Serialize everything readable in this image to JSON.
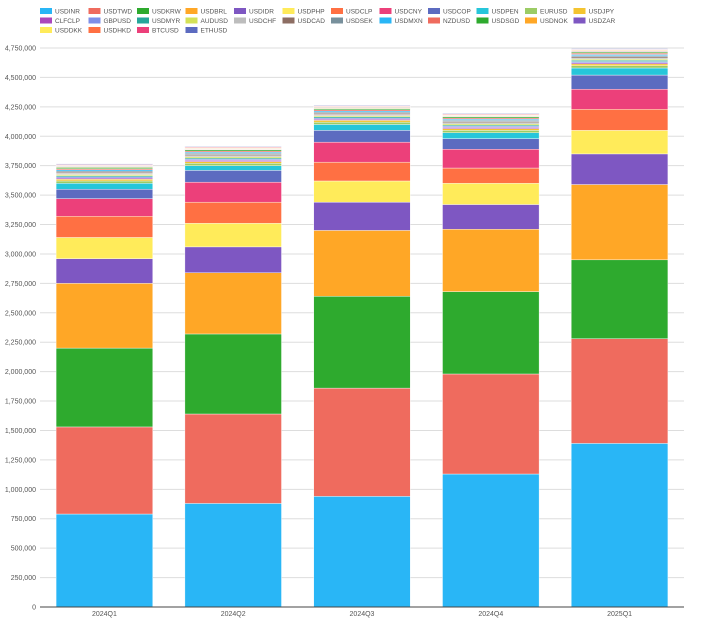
{
  "chart_data": {
    "type": "bar",
    "stacked": true,
    "title": "",
    "xlabel": "",
    "ylabel": "",
    "ylim": [
      0,
      4750000
    ],
    "y_ticks": [
      0,
      250000,
      500000,
      750000,
      1000000,
      1250000,
      1500000,
      1750000,
      2000000,
      2250000,
      2500000,
      2750000,
      3000000,
      3250000,
      3500000,
      3750000,
      4000000,
      4250000,
      4500000,
      4750000
    ],
    "grid": true,
    "legend_position": "top",
    "categories": [
      "2024Q1",
      "2024Q2",
      "2024Q3",
      "2024Q4",
      "2025Q1"
    ],
    "series": [
      {
        "name": "USDINR",
        "color": "#29b6f6",
        "values": [
          790000,
          880000,
          940000,
          1130000,
          1390000
        ]
      },
      {
        "name": "USDTWD",
        "color": "#ef6b5e",
        "values": [
          740000,
          760000,
          920000,
          850000,
          890000
        ]
      },
      {
        "name": "USDKRW",
        "color": "#2eaa2e",
        "values": [
          670000,
          680000,
          780000,
          700000,
          670000
        ]
      },
      {
        "name": "USDBRL",
        "color": "#ffa726",
        "values": [
          550000,
          520000,
          560000,
          530000,
          640000
        ]
      },
      {
        "name": "USDIDR",
        "color": "#7e57c2",
        "values": [
          210000,
          220000,
          240000,
          210000,
          260000
        ]
      },
      {
        "name": "USDPHP",
        "color": "#ffeb5a",
        "values": [
          180000,
          200000,
          180000,
          180000,
          200000
        ]
      },
      {
        "name": "USDCLP",
        "color": "#ff7043",
        "values": [
          180000,
          180000,
          160000,
          130000,
          180000
        ]
      },
      {
        "name": "USDCNY",
        "color": "#ec407a",
        "values": [
          150000,
          170000,
          170000,
          160000,
          170000
        ]
      },
      {
        "name": "USDCOP",
        "color": "#5c6bc0",
        "values": [
          80000,
          100000,
          100000,
          90000,
          120000
        ]
      },
      {
        "name": "USDPEN",
        "color": "#26c6da",
        "values": [
          50000,
          40000,
          50000,
          50000,
          60000
        ]
      },
      {
        "name": "EURUSD",
        "color": "#9ccc65",
        "values": [
          20000,
          20000,
          20000,
          20000,
          20000
        ]
      },
      {
        "name": "USDJPY",
        "color": "#f4c430",
        "values": [
          15000,
          15000,
          15000,
          15000,
          15000
        ]
      },
      {
        "name": "CLFCLP",
        "color": "#ab47bc",
        "values": [
          10000,
          10000,
          10000,
          10000,
          10000
        ]
      },
      {
        "name": "GBPUSD",
        "color": "#7e8fe8",
        "values": [
          10000,
          10000,
          10000,
          10000,
          10000
        ]
      },
      {
        "name": "USDMYR",
        "color": "#26a69a",
        "values": [
          10000,
          10000,
          10000,
          10000,
          10000
        ]
      },
      {
        "name": "AUDUSD",
        "color": "#d4e157",
        "values": [
          10000,
          10000,
          10000,
          10000,
          10000
        ]
      },
      {
        "name": "USDCHF",
        "color": "#bdbdbd",
        "values": [
          10000,
          10000,
          10000,
          10000,
          10000
        ]
      },
      {
        "name": "USDCAD",
        "color": "#8d6e63",
        "values": [
          10000,
          10000,
          10000,
          10000,
          10000
        ]
      },
      {
        "name": "USDSEK",
        "color": "#78909c",
        "values": [
          10000,
          10000,
          10000,
          10000,
          10000
        ]
      },
      {
        "name": "USDMXN",
        "color": "#29b6f6",
        "values": [
          10000,
          10000,
          10000,
          10000,
          10000
        ]
      },
      {
        "name": "NZDUSD",
        "color": "#ef6b5e",
        "values": [
          10000,
          10000,
          10000,
          10000,
          10000
        ]
      },
      {
        "name": "USDSGD",
        "color": "#2eaa2e",
        "values": [
          10000,
          10000,
          10000,
          10000,
          10000
        ]
      },
      {
        "name": "USDNOK",
        "color": "#ffa726",
        "values": [
          5000,
          5000,
          5000,
          5000,
          5000
        ]
      },
      {
        "name": "USDZAR",
        "color": "#7e57c2",
        "values": [
          5000,
          5000,
          5000,
          5000,
          5000
        ]
      },
      {
        "name": "USDDKK",
        "color": "#ffeb5a",
        "values": [
          5000,
          5000,
          5000,
          5000,
          5000
        ]
      },
      {
        "name": "USDHKD",
        "color": "#ff7043",
        "values": [
          5000,
          5000,
          5000,
          5000,
          5000
        ]
      },
      {
        "name": "BTCUSD",
        "color": "#ec407a",
        "values": [
          5000,
          5000,
          5000,
          5000,
          5000
        ]
      },
      {
        "name": "ETHUSD",
        "color": "#5c6bc0",
        "values": [
          5000,
          5000,
          5000,
          5000,
          5000
        ]
      }
    ]
  }
}
